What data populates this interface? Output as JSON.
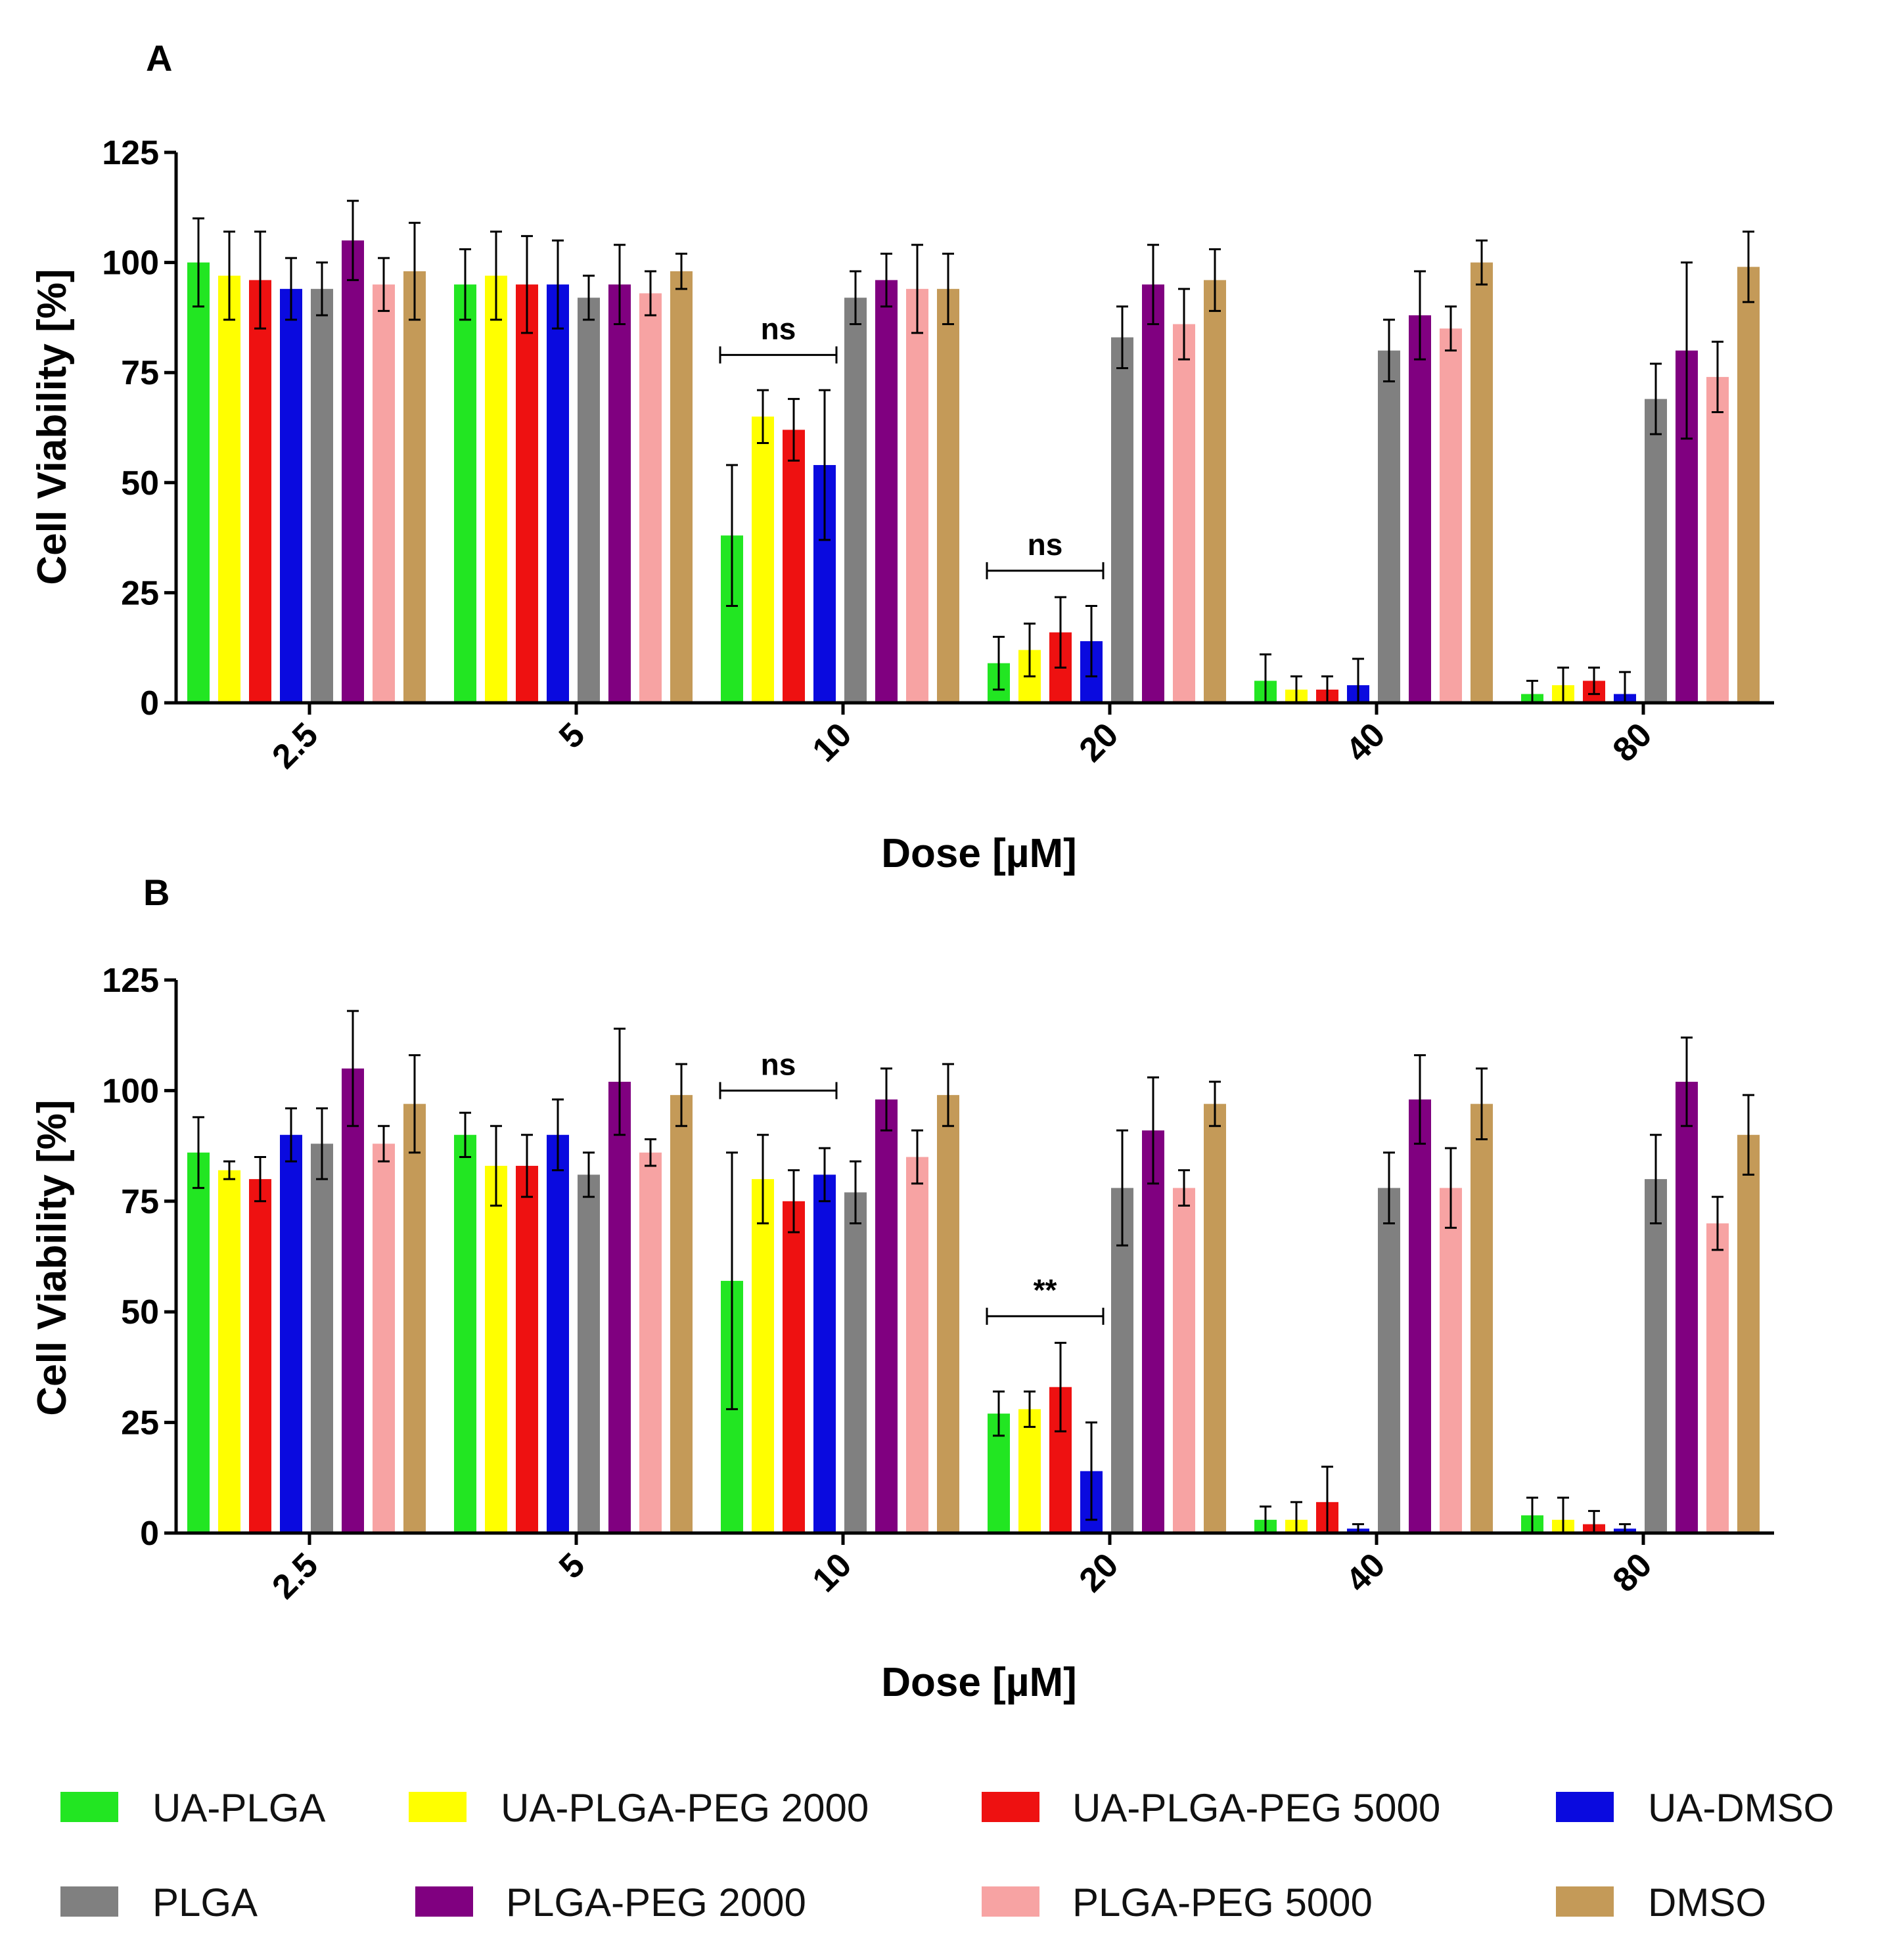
{
  "figure": {
    "panels": [
      "A",
      "B"
    ],
    "x_label": "Dose [µM]",
    "y_label": "Cell Viability [%]",
    "legend": [
      {
        "label": "UA-PLGA",
        "color": "#22e622"
      },
      {
        "label": "UA-PLGA-PEG 2000",
        "color": "#ffff00"
      },
      {
        "label": "UA-PLGA-PEG 5000",
        "color": "#ee1111"
      },
      {
        "label": "UA-DMSO",
        "color": "#0a0adf"
      },
      {
        "label": "PLGA",
        "color": "#808080"
      },
      {
        "label": "PLGA-PEG 2000",
        "color": "#800080"
      },
      {
        "label": "PLGA-PEG 5000",
        "color": "#f7a3a3"
      },
      {
        "label": "DMSO",
        "color": "#c49a58"
      }
    ]
  },
  "chart_data": [
    {
      "type": "bar",
      "panel": "A",
      "xlabel": "Dose [µM]",
      "ylabel": "Cell Viability [%]",
      "ylim": [
        0,
        125
      ],
      "yticks": [
        "0",
        "25",
        "50",
        "75",
        "100",
        "125"
      ],
      "categories": [
        "2.5",
        "5",
        "10",
        "20",
        "40",
        "80"
      ],
      "series": [
        {
          "name": "UA-PLGA",
          "values": [
            100,
            95,
            38,
            9,
            5,
            2
          ],
          "errors": [
            10,
            8,
            16,
            6,
            6,
            3
          ]
        },
        {
          "name": "UA-PLGA-PEG 2000",
          "values": [
            97,
            97,
            65,
            12,
            3,
            4
          ],
          "errors": [
            10,
            10,
            6,
            6,
            3,
            4
          ]
        },
        {
          "name": "UA-PLGA-PEG 5000",
          "values": [
            96,
            95,
            62,
            16,
            3,
            5
          ],
          "errors": [
            11,
            11,
            7,
            8,
            3,
            3
          ]
        },
        {
          "name": "UA-DMSO",
          "values": [
            94,
            95,
            54,
            14,
            4,
            2
          ],
          "errors": [
            7,
            10,
            17,
            8,
            6,
            5
          ]
        },
        {
          "name": "PLGA",
          "values": [
            94,
            92,
            92,
            83,
            80,
            69
          ],
          "errors": [
            6,
            5,
            6,
            7,
            7,
            8
          ]
        },
        {
          "name": "PLGA-PEG 2000",
          "values": [
            105,
            95,
            96,
            95,
            88,
            80
          ],
          "errors": [
            9,
            9,
            6,
            9,
            10,
            20
          ]
        },
        {
          "name": "PLGA-PEG 5000",
          "values": [
            95,
            93,
            94,
            86,
            85,
            74
          ],
          "errors": [
            6,
            5,
            10,
            8,
            5,
            8
          ]
        },
        {
          "name": "DMSO",
          "values": [
            98,
            98,
            94,
            96,
            100,
            99
          ],
          "errors": [
            11,
            4,
            8,
            7,
            5,
            8
          ]
        }
      ],
      "annotations": [
        {
          "label": "ns",
          "category": "10",
          "value": 79
        },
        {
          "label": "ns",
          "category": "20",
          "value": 30
        }
      ]
    },
    {
      "type": "bar",
      "panel": "B",
      "xlabel": "Dose [µM]",
      "ylabel": "Cell Viability [%]",
      "ylim": [
        0,
        125
      ],
      "yticks": [
        "0",
        "25",
        "50",
        "75",
        "100",
        "125"
      ],
      "categories": [
        "2.5",
        "5",
        "10",
        "20",
        "40",
        "80"
      ],
      "series": [
        {
          "name": "UA-PLGA",
          "values": [
            86,
            90,
            57,
            27,
            3,
            4
          ],
          "errors": [
            8,
            5,
            29,
            5,
            3,
            4
          ]
        },
        {
          "name": "UA-PLGA-PEG 2000",
          "values": [
            82,
            83,
            80,
            28,
            3,
            3
          ],
          "errors": [
            2,
            9,
            10,
            4,
            4,
            5
          ]
        },
        {
          "name": "UA-PLGA-PEG 5000",
          "values": [
            80,
            83,
            75,
            33,
            7,
            2
          ],
          "errors": [
            5,
            7,
            7,
            10,
            8,
            3
          ]
        },
        {
          "name": "UA-DMSO",
          "values": [
            90,
            90,
            81,
            14,
            1,
            1
          ],
          "errors": [
            6,
            8,
            6,
            11,
            1,
            1
          ]
        },
        {
          "name": "PLGA",
          "values": [
            88,
            81,
            77,
            78,
            78,
            80
          ],
          "errors": [
            8,
            5,
            7,
            13,
            8,
            10
          ]
        },
        {
          "name": "PLGA-PEG 2000",
          "values": [
            105,
            102,
            98,
            91,
            98,
            102
          ],
          "errors": [
            13,
            12,
            7,
            12,
            10,
            10
          ]
        },
        {
          "name": "PLGA-PEG 5000",
          "values": [
            88,
            86,
            85,
            78,
            78,
            70
          ],
          "errors": [
            4,
            3,
            6,
            4,
            9,
            6
          ]
        },
        {
          "name": "DMSO",
          "values": [
            97,
            99,
            99,
            97,
            97,
            90
          ],
          "errors": [
            11,
            7,
            7,
            5,
            8,
            9
          ]
        }
      ],
      "annotations": [
        {
          "label": "ns",
          "category": "10",
          "value": 100
        },
        {
          "label": "**",
          "category": "20",
          "value": 49
        }
      ]
    }
  ]
}
